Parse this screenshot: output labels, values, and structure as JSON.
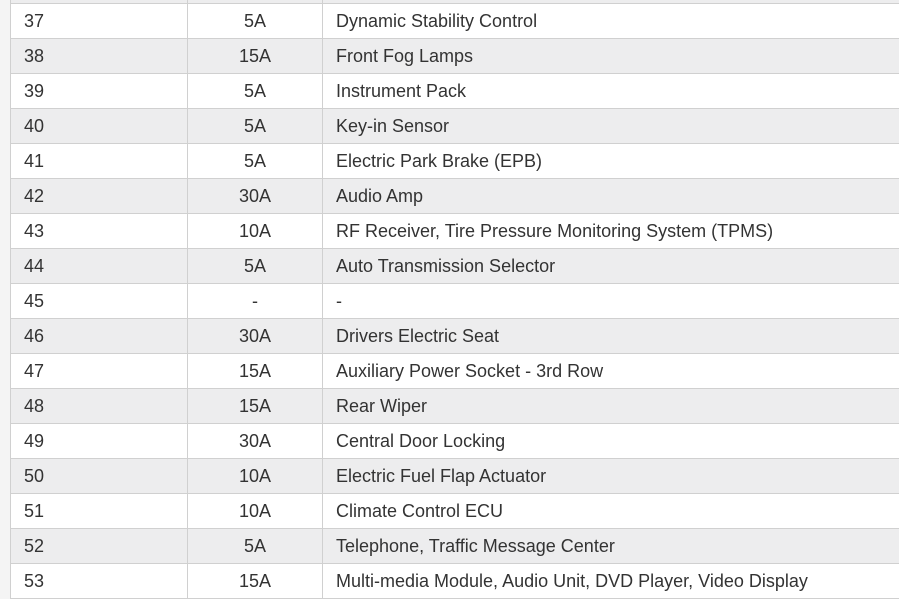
{
  "table": {
    "rows": [
      {
        "no": "",
        "amps": "",
        "desc": ""
      },
      {
        "no": "37",
        "amps": "5A",
        "desc": "Dynamic Stability Control"
      },
      {
        "no": "38",
        "amps": "15A",
        "desc": "Front Fog Lamps"
      },
      {
        "no": "39",
        "amps": "5A",
        "desc": "Instrument Pack"
      },
      {
        "no": "40",
        "amps": "5A",
        "desc": "Key-in Sensor"
      },
      {
        "no": "41",
        "amps": "5A",
        "desc": "Electric Park Brake (EPB)"
      },
      {
        "no": "42",
        "amps": "30A",
        "desc": "Audio Amp"
      },
      {
        "no": "43",
        "amps": "10A",
        "desc": "RF Receiver, Tire Pressure Monitoring System (TPMS)"
      },
      {
        "no": "44",
        "amps": "5A",
        "desc": "Auto Transmission Selector"
      },
      {
        "no": "45",
        "amps": "-",
        "desc": "-"
      },
      {
        "no": "46",
        "amps": "30A",
        "desc": "Drivers Electric Seat"
      },
      {
        "no": "47",
        "amps": "15A",
        "desc": "Auxiliary Power Socket - 3rd Row"
      },
      {
        "no": "48",
        "amps": "15A",
        "desc": "Rear Wiper"
      },
      {
        "no": "49",
        "amps": "30A",
        "desc": "Central Door Locking"
      },
      {
        "no": "50",
        "amps": "10A",
        "desc": "Electric Fuel Flap Actuator"
      },
      {
        "no": "51",
        "amps": "10A",
        "desc": "Climate Control ECU"
      },
      {
        "no": "52",
        "amps": "5A",
        "desc": "Telephone, Traffic Message Center"
      },
      {
        "no": "53",
        "amps": "15A",
        "desc": "Multi-media Module, Audio Unit, DVD Player, Video Display"
      }
    ]
  }
}
